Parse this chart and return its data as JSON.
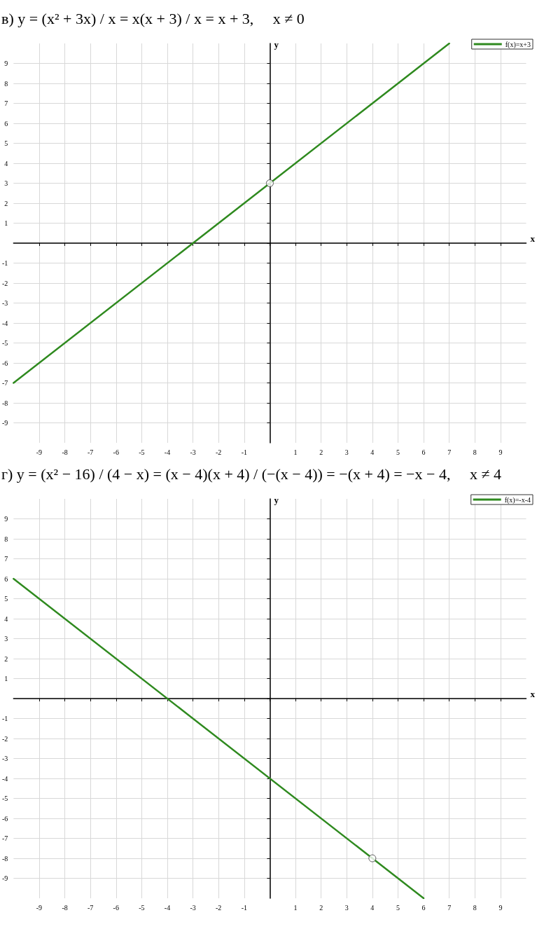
{
  "chart_data": [
    {
      "type": "line",
      "title": "в) y = (x² + 3x) / x = x(x + 3) / x = x + 3,     x ≠ 0",
      "xlabel": "x",
      "ylabel": "y",
      "xlim": [
        -10,
        10
      ],
      "ylim": [
        -10,
        10
      ],
      "xticks": [
        -9,
        -8,
        -7,
        -6,
        -5,
        -4,
        -3,
        -2,
        -1,
        {
          "value": 0,
          "label": null
        },
        1,
        2,
        3,
        4,
        5,
        6,
        7,
        8,
        9
      ],
      "yticks": [
        -9,
        -8,
        -7,
        -6,
        -5,
        -4,
        -3,
        -2,
        -1,
        {
          "value": 0,
          "label": null
        },
        1,
        2,
        3,
        4,
        5,
        6,
        7,
        8,
        9
      ],
      "grid": true,
      "legend": "top right",
      "series": [
        {
          "type": "line",
          "name": "f(x)=x+3",
          "color": "#2f8a1f",
          "marker": "none",
          "x": [
            -10,
            7
          ],
          "values": [
            -7,
            10
          ]
        },
        {
          "type": "scatter",
          "color": "#ffffff",
          "marker": "circle",
          "x": [
            0
          ],
          "values": [
            3
          ]
        }
      ]
    },
    {
      "type": "line",
      "title": "г) y = (x² − 16) / (4 − x) = (x − 4)(x + 4) / (−(x − 4)) = −(x + 4) = −x − 4,     x ≠ 4",
      "xlabel": "x",
      "ylabel": "y",
      "xlim": [
        -10,
        10
      ],
      "ylim": [
        -10,
        10
      ],
      "xticks": [
        -9,
        -8,
        -7,
        -6,
        -5,
        -4,
        -3,
        -2,
        -1,
        {
          "value": 0,
          "label": null
        },
        1,
        2,
        3,
        4,
        5,
        6,
        7,
        8,
        9
      ],
      "yticks": [
        -9,
        -8,
        -7,
        -6,
        -5,
        -4,
        -3,
        -2,
        -1,
        {
          "value": 0,
          "label": null
        },
        1,
        2,
        3,
        4,
        5,
        6,
        7,
        8,
        9
      ],
      "grid": true,
      "legend": "top right",
      "series": [
        {
          "type": "line",
          "name": "f(x)=-x-4",
          "color": "#2f8a1f",
          "marker": "none",
          "x": [
            -10,
            6
          ],
          "values": [
            6,
            -10
          ]
        },
        {
          "type": "scatter",
          "color": "#ffffff",
          "marker": "circle",
          "x": [
            4
          ],
          "values": [
            -8
          ]
        }
      ]
    }
  ]
}
